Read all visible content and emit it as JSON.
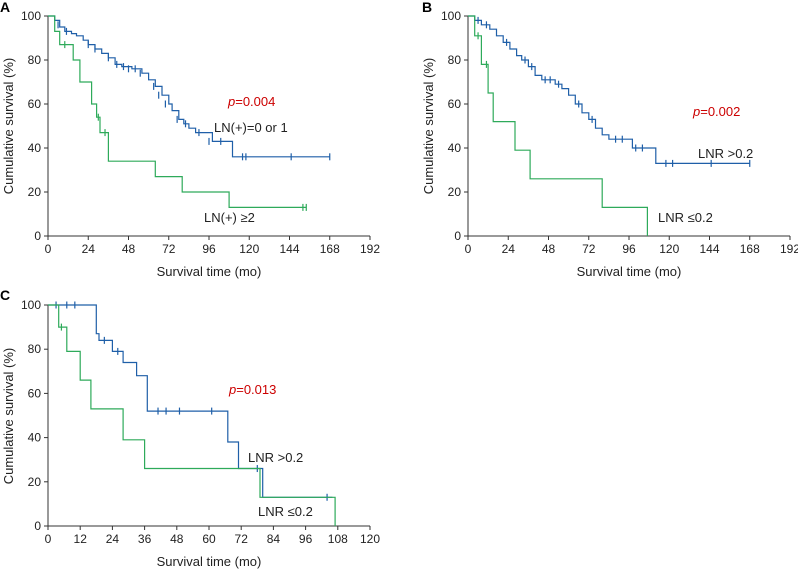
{
  "chart_data": [
    {
      "panel": "A",
      "type": "line",
      "subtype": "kaplan-meier",
      "xlabel": "Survival time (mo)",
      "ylabel": "Cumulative survival (%)",
      "xlim": [
        0,
        192
      ],
      "ylim": [
        0,
        100
      ],
      "xticks": [
        0,
        24,
        48,
        72,
        96,
        120,
        144,
        168,
        192
      ],
      "yticks": [
        0,
        20,
        40,
        60,
        80,
        100
      ],
      "p_value": {
        "prefix": "p",
        "value": "=0.004",
        "color": "#cc0000"
      },
      "series": [
        {
          "name": "LN(+)=0 or 1",
          "color": "#1f5fa8",
          "steps": [
            [
              0,
              100
            ],
            [
              4,
              98
            ],
            [
              7,
              95
            ],
            [
              10,
              93
            ],
            [
              14,
              92
            ],
            [
              17,
              91
            ],
            [
              21,
              89
            ],
            [
              24,
              87
            ],
            [
              28,
              85
            ],
            [
              32,
              83
            ],
            [
              36,
              81
            ],
            [
              40,
              78
            ],
            [
              44,
              77
            ],
            [
              50,
              76
            ],
            [
              56,
              74
            ],
            [
              60,
              71
            ],
            [
              64,
              68
            ],
            [
              68,
              64
            ],
            [
              72,
              60
            ],
            [
              74,
              57
            ],
            [
              78,
              53
            ],
            [
              81,
              51
            ],
            [
              84,
              49
            ],
            [
              88,
              47
            ],
            [
              96,
              47
            ],
            [
              98,
              43
            ],
            [
              108,
              43
            ],
            [
              110,
              36
            ],
            [
              168,
              36
            ]
          ],
          "end": 168,
          "censors": [
            [
              6,
              96
            ],
            [
              11,
              93
            ],
            [
              24,
              87
            ],
            [
              28,
              85
            ],
            [
              36,
              81
            ],
            [
              41,
              78
            ],
            [
              45,
              77
            ],
            [
              48,
              76
            ],
            [
              52,
              76
            ],
            [
              55,
              74
            ],
            [
              63,
              68
            ],
            [
              66,
              64
            ],
            [
              70,
              60
            ],
            [
              77,
              53
            ],
            [
              82,
              51
            ],
            [
              90,
              47
            ],
            [
              96,
              43
            ],
            [
              103,
              43
            ],
            [
              116,
              36
            ],
            [
              118,
              36
            ],
            [
              145,
              36
            ],
            [
              168,
              36
            ]
          ],
          "label": "LN(+)=0 or 1"
        },
        {
          "name": "LN(+) ≥2",
          "color": "#2eaa5a",
          "steps": [
            [
              0,
              100
            ],
            [
              4,
              93
            ],
            [
              7,
              87
            ],
            [
              15,
              80
            ],
            [
              19,
              70
            ],
            [
              26,
              60
            ],
            [
              29,
              54
            ],
            [
              31,
              47
            ],
            [
              36,
              34
            ],
            [
              62,
              34
            ],
            [
              64,
              27
            ],
            [
              78,
              27
            ],
            [
              80,
              20
            ],
            [
              106,
              20
            ],
            [
              108,
              13
            ],
            [
              154,
              13
            ]
          ],
          "end": 154,
          "censors": [
            [
              10,
              87
            ],
            [
              30,
              54
            ],
            [
              34,
              47
            ],
            [
              152,
              13
            ],
            [
              154,
              13
            ]
          ],
          "label": "LN(+) ≥2"
        }
      ]
    },
    {
      "panel": "B",
      "type": "line",
      "subtype": "kaplan-meier",
      "xlabel": "Survival time (mo)",
      "ylabel": "Cumulative survival (%)",
      "xlim": [
        0,
        192
      ],
      "ylim": [
        0,
        100
      ],
      "xticks": [
        0,
        24,
        48,
        72,
        96,
        120,
        144,
        168,
        192
      ],
      "yticks": [
        0,
        20,
        40,
        60,
        80,
        100
      ],
      "p_value": {
        "prefix": "p",
        "value": "=0.002",
        "color": "#cc0000"
      },
      "series": [
        {
          "name": "LNR >0.2",
          "color": "#1f5fa8",
          "steps": [
            [
              0,
              100
            ],
            [
              4,
              98
            ],
            [
              8,
              96
            ],
            [
              13,
              94
            ],
            [
              17,
              91
            ],
            [
              21,
              88
            ],
            [
              25,
              85
            ],
            [
              29,
              82
            ],
            [
              32,
              80
            ],
            [
              36,
              77
            ],
            [
              40,
              73
            ],
            [
              44,
              71
            ],
            [
              52,
              69
            ],
            [
              56,
              67
            ],
            [
              60,
              64
            ],
            [
              64,
              60
            ],
            [
              68,
              56
            ],
            [
              72,
              53
            ],
            [
              76,
              49
            ],
            [
              80,
              46
            ],
            [
              84,
              44
            ],
            [
              96,
              44
            ],
            [
              98,
              40
            ],
            [
              108,
              40
            ],
            [
              112,
              33
            ],
            [
              168,
              33
            ]
          ],
          "end": 168,
          "censors": [
            [
              6,
              98
            ],
            [
              11,
              96
            ],
            [
              23,
              88
            ],
            [
              34,
              80
            ],
            [
              38,
              77
            ],
            [
              46,
              71
            ],
            [
              49,
              71
            ],
            [
              54,
              69
            ],
            [
              66,
              60
            ],
            [
              74,
              53
            ],
            [
              88,
              44
            ],
            [
              92,
              44
            ],
            [
              100,
              40
            ],
            [
              104,
              40
            ],
            [
              118,
              33
            ],
            [
              122,
              33
            ],
            [
              145,
              33
            ],
            [
              168,
              33
            ]
          ],
          "label": "LNR >0.2"
        },
        {
          "name": "LNR ≤0.2",
          "color": "#2eaa5a",
          "steps": [
            [
              0,
              100
            ],
            [
              4,
              91
            ],
            [
              8,
              78
            ],
            [
              12,
              65
            ],
            [
              15,
              52
            ],
            [
              26,
              52
            ],
            [
              28,
              39
            ],
            [
              36,
              39
            ],
            [
              37,
              26
            ],
            [
              78,
              26
            ],
            [
              80,
              13
            ],
            [
              106,
              13
            ],
            [
              107,
              0
            ]
          ],
          "end": 107,
          "censors": [
            [
              6,
              91
            ],
            [
              11,
              78
            ]
          ],
          "label": "LNR ≤0.2"
        }
      ]
    },
    {
      "panel": "C",
      "type": "line",
      "subtype": "kaplan-meier",
      "xlabel": "Survival time (mo)",
      "ylabel": "Cumulative survival (%)",
      "xlim": [
        0,
        120
      ],
      "ylim": [
        0,
        100
      ],
      "xticks": [
        0,
        12,
        24,
        36,
        48,
        60,
        72,
        84,
        96,
        108,
        120
      ],
      "yticks": [
        0,
        20,
        40,
        60,
        80,
        100
      ],
      "p_value": {
        "prefix": "p",
        "value": "=0.013",
        "color": "#cc0000"
      },
      "series": [
        {
          "name": "LNR >0.2",
          "color": "#1f5fa8",
          "steps": [
            [
              0,
              100
            ],
            [
              17,
              100
            ],
            [
              18,
              87
            ],
            [
              19,
              84
            ],
            [
              23,
              84
            ],
            [
              24,
              79
            ],
            [
              28,
              74
            ],
            [
              31,
              74
            ],
            [
              33,
              68
            ],
            [
              36,
              68
            ],
            [
              37,
              52
            ],
            [
              66,
              52
            ],
            [
              67,
              38
            ],
            [
              70,
              38
            ],
            [
              71,
              26
            ],
            [
              79,
              26
            ],
            [
              80,
              13
            ],
            [
              106,
              13
            ]
          ],
          "end": 106,
          "censors": [
            [
              3,
              100
            ],
            [
              7,
              100
            ],
            [
              10,
              100
            ],
            [
              21,
              84
            ],
            [
              26,
              79
            ],
            [
              41,
              52
            ],
            [
              44,
              52
            ],
            [
              49,
              52
            ],
            [
              61,
              52
            ],
            [
              78,
              26
            ],
            [
              104,
              13
            ]
          ],
          "label": "LNR >0.2"
        },
        {
          "name": "LNR ≤0.2",
          "color": "#2eaa5a",
          "steps": [
            [
              0,
              100
            ],
            [
              4,
              90
            ],
            [
              7,
              79
            ],
            [
              11,
              79
            ],
            [
              12,
              66
            ],
            [
              15,
              66
            ],
            [
              16,
              53
            ],
            [
              27,
              53
            ],
            [
              28,
              39
            ],
            [
              35,
              39
            ],
            [
              36,
              26
            ],
            [
              78,
              26
            ],
            [
              79,
              13
            ],
            [
              106,
              13
            ],
            [
              107,
              0
            ]
          ],
          "end": 107,
          "censors": [
            [
              5,
              90
            ]
          ],
          "label": "LNR ≤0.2"
        }
      ]
    }
  ]
}
